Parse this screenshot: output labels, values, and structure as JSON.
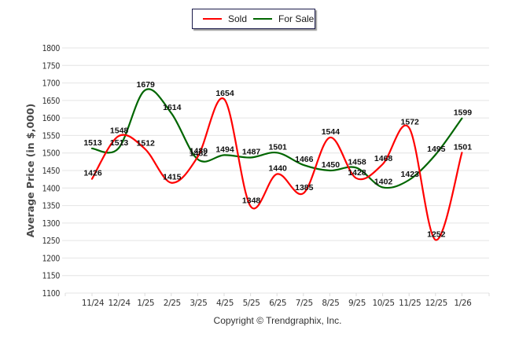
{
  "chart_data": {
    "type": "line",
    "title": "",
    "xlabel": "",
    "ylabel": "Average Price (in $,000)",
    "ylim": [
      1100,
      1800
    ],
    "yticks": [
      1100,
      1150,
      1200,
      1250,
      1300,
      1350,
      1400,
      1450,
      1500,
      1550,
      1600,
      1650,
      1700,
      1750,
      1800
    ],
    "grid": true,
    "legend_position": "top-center",
    "categories": [
      "11/24",
      "12/24",
      "1/25",
      "2/25",
      "3/25",
      "4/25",
      "5/25",
      "6/25",
      "7/25",
      "8/25",
      "9/25",
      "10/25",
      "11/25",
      "12/25",
      "1/26"
    ],
    "series": [
      {
        "name": "Sold",
        "color": "#ff0000",
        "values": [
          1426,
          1548,
          1512,
          1415,
          1489,
          1654,
          1348,
          1440,
          1385,
          1544,
          1428,
          1468,
          1572,
          1252,
          1501
        ]
      },
      {
        "name": "For Sale",
        "color": "#006600",
        "values": [
          1513,
          1513,
          1679,
          1614,
          1482,
          1494,
          1487,
          1501,
          1466,
          1450,
          1458,
          1402,
          1423,
          1495,
          1599
        ]
      }
    ]
  },
  "legend": {
    "sold_label": "Sold",
    "for_sale_label": "For Sale"
  },
  "footer": {
    "copyright": "Copyright © Trendgraphix, Inc."
  }
}
